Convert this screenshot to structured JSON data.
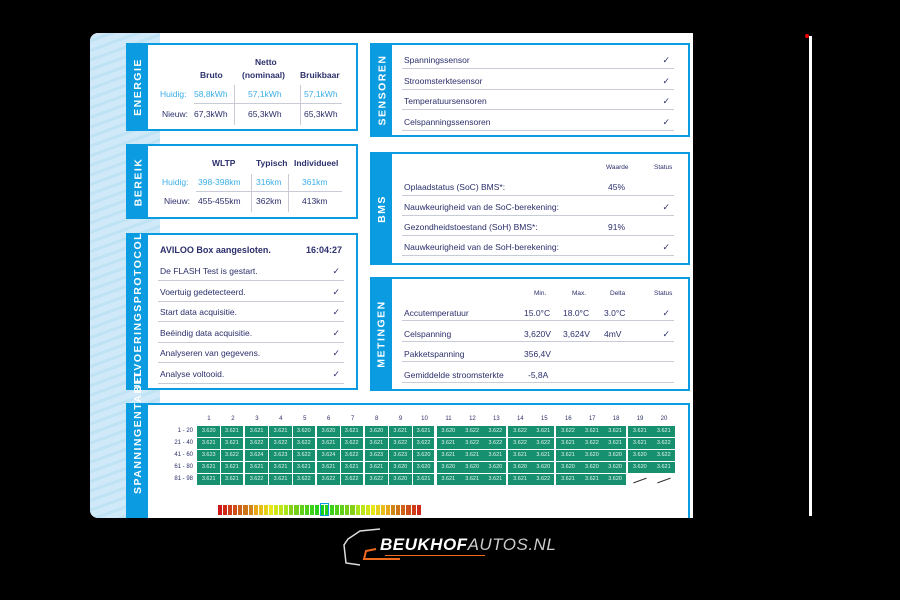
{
  "colors": {
    "accent": "#0a9be0",
    "text": "#2b2f6b",
    "current": "#3aaee6",
    "cell": "#16906f"
  },
  "energie": {
    "title": "ENERGIE",
    "headers": [
      "Bruto",
      "Netto",
      "(nominaal)",
      "Bruikbaar"
    ],
    "rows": [
      {
        "label": "Huidig:",
        "values": [
          "58,8kWh",
          "57,1kWh",
          "57,1kWh"
        ]
      },
      {
        "label": "Nieuw:",
        "values": [
          "67,3kWh",
          "65,3kWh",
          "65,3kWh"
        ]
      }
    ]
  },
  "bereik": {
    "title": "BEREIK",
    "headers": [
      "WLTP",
      "Typisch",
      "Individueel"
    ],
    "rows": [
      {
        "label": "Huidig:",
        "values": [
          "398-398km",
          "316km",
          "361km"
        ]
      },
      {
        "label": "Nieuw:",
        "values": [
          "455-455km",
          "362km",
          "413km"
        ]
      }
    ]
  },
  "protocol": {
    "title": "UITVOERINGSPROTOCOL",
    "header": "AVILOO Box aangesloten.",
    "time": "16:04:27",
    "items": [
      "De FLASH Test is gestart.",
      "Voertuig gedetecteerd.",
      "Start data acquisitie.",
      "Beëindig data acquisitie.",
      "Analyseren van gegevens.",
      "Analyse voltooid."
    ],
    "check": "✓"
  },
  "sensoren": {
    "title": "SENSOREN",
    "items": [
      "Spanningssensor",
      "Stroomsterktesensor",
      "Temperatuursensoren",
      "Celspanningssensoren"
    ]
  },
  "bms": {
    "title": "BMS",
    "col_value": "Waarde",
    "col_status": "Status",
    "rows": [
      {
        "label": "Oplaadstatus (SoC) BMS*:",
        "value": "45%",
        "status": ""
      },
      {
        "label": "Nauwkeurigheid van de SoC-berekening:",
        "value": "",
        "status": "✓"
      },
      {
        "label": "Gezondheidstoestand (SoH) BMS*:",
        "value": "91%",
        "status": ""
      },
      {
        "label": "Nauwkeurigheid van de SoH-berekening:",
        "value": "",
        "status": "✓"
      }
    ]
  },
  "metingen": {
    "title": "METINGEN",
    "cols": [
      "Min.",
      "Max.",
      "Delta",
      "Status"
    ],
    "rows": [
      {
        "label": "Accutemperatuur",
        "min": "15.0°C",
        "max": "18.0°C",
        "delta": "3.0°C",
        "status": "✓"
      },
      {
        "label": "Celspanning",
        "min": "3,620V",
        "max": "3,624V",
        "delta": "4mV",
        "status": "✓"
      },
      {
        "label": "Pakketspanning",
        "min": "356,4V",
        "max": "",
        "delta": "",
        "status": ""
      },
      {
        "label": "Gemiddelde stroomsterkte",
        "min": "-5,8A",
        "max": "",
        "delta": "",
        "status": ""
      }
    ]
  },
  "spanning": {
    "title": "SPANNINGENTABEL",
    "columns": [
      "1",
      "2",
      "3",
      "4",
      "5",
      "6",
      "7",
      "8",
      "9",
      "10",
      "11",
      "12",
      "13",
      "14",
      "15",
      "16",
      "17",
      "18",
      "19",
      "20"
    ],
    "row_labels": [
      "1 - 20",
      "21 - 40",
      "41 - 60",
      "61 - 80",
      "81 - 98"
    ],
    "rows": [
      [
        "3.620",
        "3.621",
        "3.621",
        "3.621",
        "3.620",
        "3.620",
        "3.621",
        "3.620",
        "3.621",
        "3.621",
        "3.620",
        "3.622",
        "3.622",
        "3.622",
        "3.621",
        "3.622",
        "3.621",
        "3.621",
        "3.621",
        "3.621"
      ],
      [
        "3.621",
        "3.621",
        "3.622",
        "3.622",
        "3.622",
        "3.621",
        "3.622",
        "3.621",
        "3.622",
        "3.622",
        "3.621",
        "3.622",
        "3.622",
        "3.622",
        "3.622",
        "3.621",
        "3.622",
        "3.621",
        "3.621",
        "3.622"
      ],
      [
        "3.623",
        "3.622",
        "3.624",
        "3.623",
        "3.622",
        "3.624",
        "3.622",
        "3.623",
        "3.623",
        "3.620",
        "3.621",
        "3.621",
        "3.621",
        "3.621",
        "3.621",
        "3.621",
        "3.620",
        "3.620",
        "3.620",
        "3.622"
      ],
      [
        "3.621",
        "3.621",
        "3.621",
        "3.621",
        "3.621",
        "3.621",
        "3.621",
        "3.621",
        "3.620",
        "3.620",
        "3.620",
        "3.620",
        "3.620",
        "3.620",
        "3.620",
        "3.620",
        "3.620",
        "3.620",
        "3.620",
        "3.621"
      ],
      [
        "3.621",
        "3.621",
        "3.622",
        "3.621",
        "3.622",
        "3.622",
        "3.622",
        "3.622",
        "3.620",
        "3.621",
        "3.621",
        "3.621",
        "3.621",
        "3.621",
        "3.622",
        "3.621",
        "3.621",
        "3.620",
        null,
        null
      ]
    ]
  },
  "logo": {
    "brand": "BEUKHOF",
    "suffix": "AUTOS.NL"
  }
}
